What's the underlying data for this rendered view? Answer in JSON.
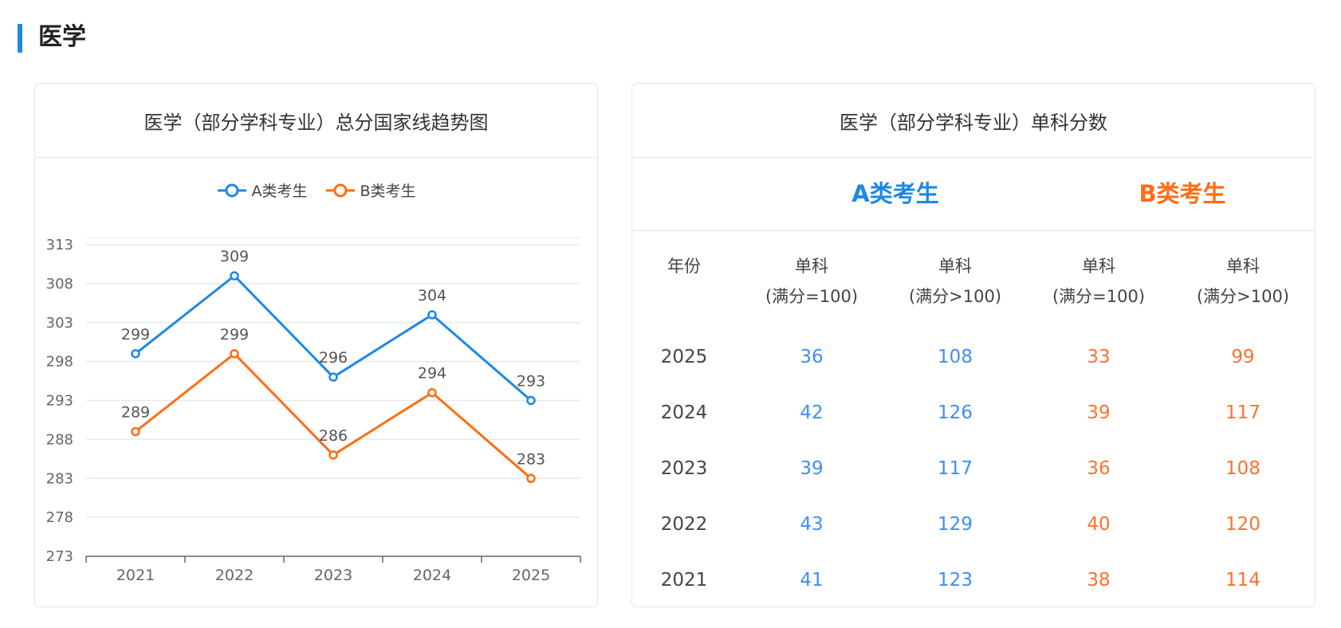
{
  "section_title": "医学",
  "chart_card": {
    "title": "医学（部分学科专业）总分国家线趋势图"
  },
  "chart_data": {
    "type": "line",
    "title": "医学（部分学科专业）总分国家线趋势图",
    "categories": [
      "2021",
      "2022",
      "2023",
      "2024",
      "2025"
    ],
    "series": [
      {
        "name": "A类考生",
        "color": "#1e88e5",
        "values": [
          299,
          309,
          296,
          304,
          293
        ]
      },
      {
        "name": "B类考生",
        "color": "#ff6d12",
        "values": [
          289,
          299,
          286,
          294,
          283
        ]
      }
    ],
    "yticks": [
      313,
      308,
      303,
      298,
      293,
      288,
      283,
      278,
      273
    ],
    "ylim": [
      273,
      313
    ],
    "grid": true,
    "legend_position": "top-center",
    "xlabel": "",
    "ylabel": ""
  },
  "table_card": {
    "title": "医学（部分学科专业）单科分数",
    "group_a": "A类考生",
    "group_b": "B类考生",
    "headers": {
      "year": "年份",
      "col1_line1": "单科",
      "col1_line2": "(满分=100)",
      "col2_line1": "单科",
      "col2_line2": "(满分>100)",
      "col3_line1": "单科",
      "col3_line2": "(满分=100)",
      "col4_line1": "单科",
      "col4_line2": "(满分>100)"
    },
    "rows": [
      {
        "year": "2025",
        "a1": "36",
        "a2": "108",
        "b1": "33",
        "b2": "99"
      },
      {
        "year": "2024",
        "a1": "42",
        "a2": "126",
        "b1": "39",
        "b2": "117"
      },
      {
        "year": "2023",
        "a1": "39",
        "a2": "117",
        "b1": "36",
        "b2": "108"
      },
      {
        "year": "2022",
        "a1": "43",
        "a2": "129",
        "b1": "40",
        "b2": "120"
      },
      {
        "year": "2021",
        "a1": "41",
        "a2": "123",
        "b1": "38",
        "b2": "114"
      }
    ]
  }
}
